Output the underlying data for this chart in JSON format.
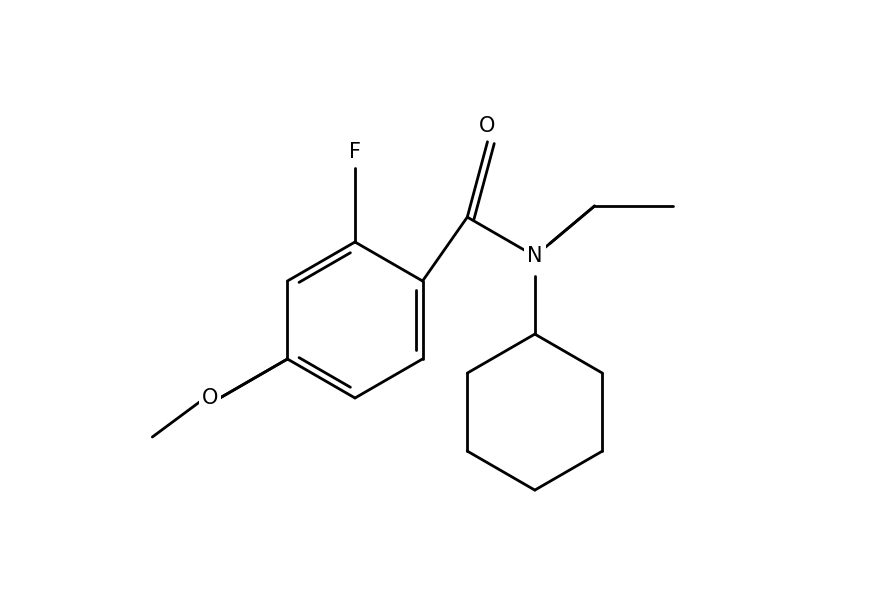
{
  "background_color": "#ffffff",
  "line_color": "#000000",
  "line_width": 2.0,
  "font_size": 14,
  "figsize": [
    8.84,
    6.0
  ],
  "dpi": 100,
  "xlim": [
    0,
    884
  ],
  "ylim": [
    0,
    600
  ]
}
